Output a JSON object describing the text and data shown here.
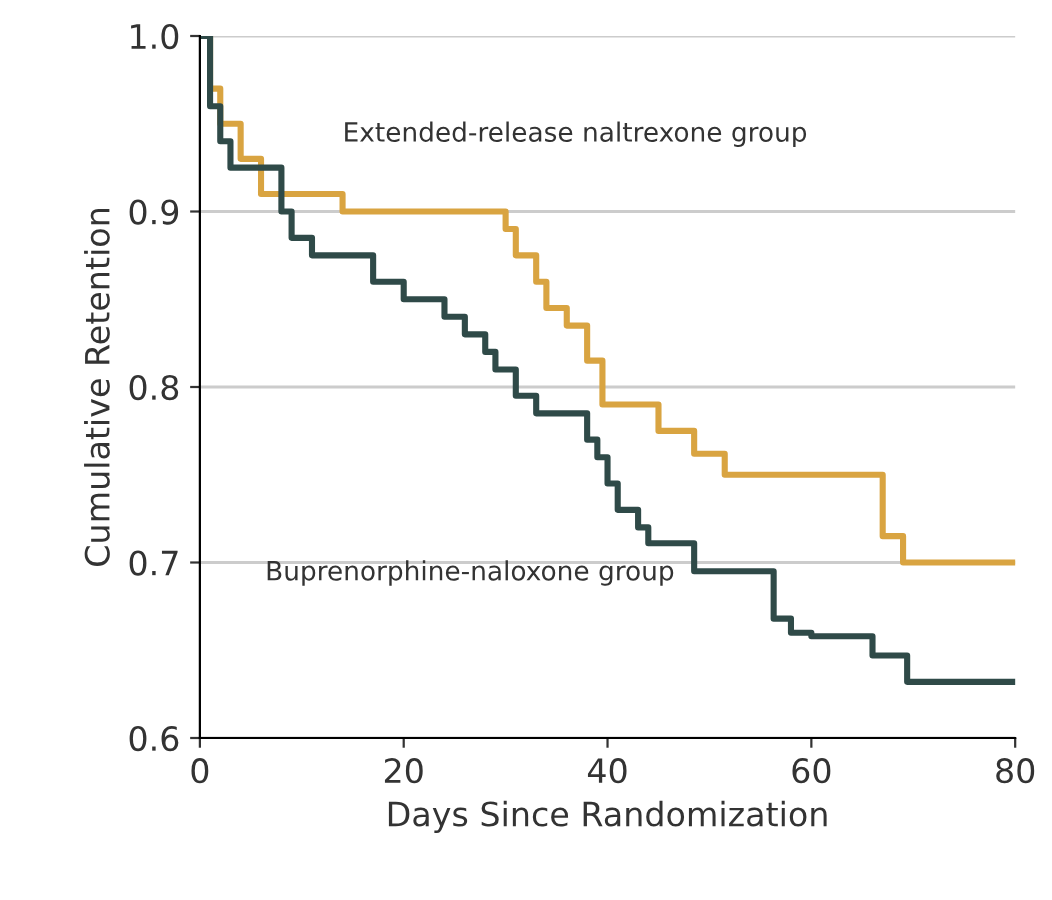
{
  "chart_data": {
    "type": "step",
    "xlabel": "Days Since Randomization",
    "ylabel": "Cumulative Retention",
    "xlim": [
      0,
      80
    ],
    "ylim": [
      0.6,
      1.0
    ],
    "xticks": [
      0,
      20,
      40,
      60,
      80
    ],
    "yticks": [
      0.6,
      0.7,
      0.8,
      0.9,
      {
        "value": 1.0,
        "label": "1.0"
      }
    ],
    "grid": "y",
    "legend": false,
    "line_style": "solid",
    "marker": "none",
    "series": [
      {
        "name": "Extended-release naltrexone group",
        "color": "#d9a441",
        "x": [
          0,
          1,
          2,
          4,
          6,
          14,
          30,
          31,
          33,
          34,
          36,
          38,
          39.5,
          45,
          48.5,
          51.5,
          67,
          69,
          80
        ],
        "values": [
          1.0,
          0.97,
          0.95,
          0.93,
          0.91,
          0.9,
          0.89,
          0.875,
          0.86,
          0.845,
          0.835,
          0.815,
          0.79,
          0.775,
          0.762,
          0.75,
          0.715,
          0.7,
          0.7
        ]
      },
      {
        "name": "Buprenorphine-naloxone group",
        "color": "#2f4a48",
        "x": [
          0,
          1,
          2,
          3,
          8,
          9,
          11,
          17,
          20,
          24,
          26,
          28,
          29,
          31,
          33,
          38,
          39,
          40,
          41,
          43,
          44,
          48.5,
          56.3,
          58,
          60,
          66,
          69.4,
          80
        ],
        "values": [
          1.0,
          0.96,
          0.94,
          0.925,
          0.9,
          0.885,
          0.875,
          0.86,
          0.85,
          0.84,
          0.83,
          0.82,
          0.81,
          0.795,
          0.785,
          0.77,
          0.76,
          0.745,
          0.73,
          0.72,
          0.711,
          0.695,
          0.668,
          0.66,
          0.658,
          0.647,
          0.632,
          0.632
        ]
      }
    ]
  }
}
